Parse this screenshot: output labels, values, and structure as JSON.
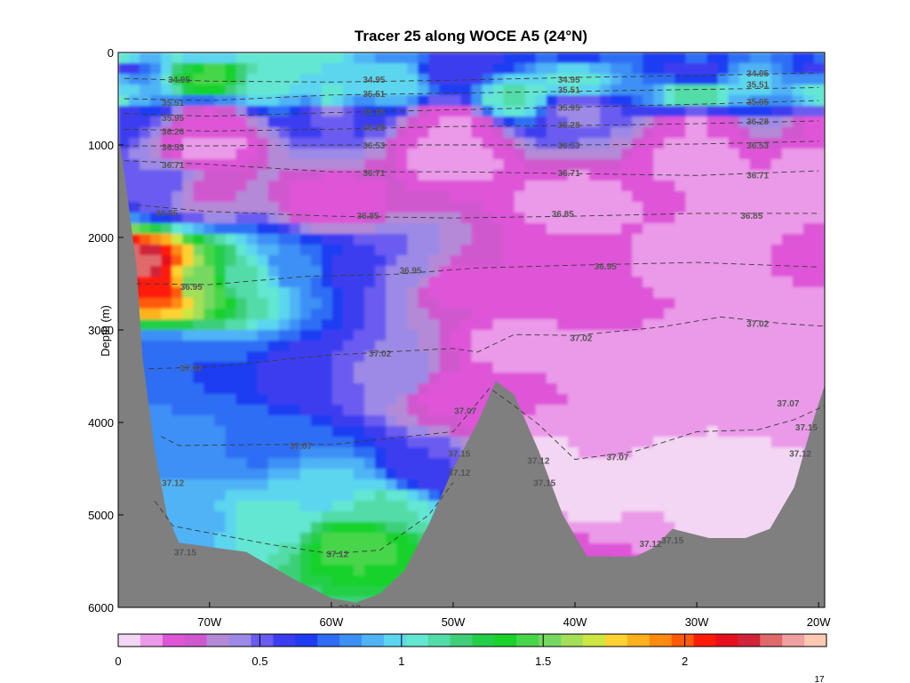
{
  "chart_data": {
    "type": "heatmap",
    "title": "Tracer 25 along WOCE A5 (24°N)",
    "ylabel": "Depth (m)",
    "xlabel": "",
    "x_unit": "degrees longitude (negative = W)",
    "xlim": [
      -77.5,
      -19.5
    ],
    "ylim": [
      0,
      6000
    ],
    "y_inverted": true,
    "x_ticks": [
      {
        "value": -70,
        "label": "70W"
      },
      {
        "value": -60,
        "label": "60W"
      },
      {
        "value": -50,
        "label": "50W"
      },
      {
        "value": -40,
        "label": "40W"
      },
      {
        "value": -30,
        "label": "30W"
      },
      {
        "value": -20,
        "label": "20W"
      }
    ],
    "y_ticks": [
      {
        "value": 0,
        "label": "0"
      },
      {
        "value": 1000,
        "label": "1000"
      },
      {
        "value": 2000,
        "label": "2000"
      },
      {
        "value": 3000,
        "label": "3000"
      },
      {
        "value": 4000,
        "label": "4000"
      },
      {
        "value": 5000,
        "label": "5000"
      },
      {
        "value": 6000,
        "label": "6000"
      }
    ],
    "colorbar": {
      "range": [
        0,
        2.5
      ],
      "ticks": [
        {
          "value": 0,
          "label": "0"
        },
        {
          "value": 0.5,
          "label": "0.5"
        },
        {
          "value": 1,
          "label": "1"
        },
        {
          "value": 1.5,
          "label": "1.5"
        },
        {
          "value": 2,
          "label": "2"
        }
      ],
      "colors": [
        "#f3d6f3",
        "#ea9ae8",
        "#de55d8",
        "#d058cf",
        "#b48ad6",
        "#9c8ae6",
        "#6a5cf0",
        "#3d3df0",
        "#1f3cf2",
        "#2f6ef4",
        "#3c90f5",
        "#4fb3f6",
        "#5bd6ef",
        "#63e6d2",
        "#52dca8",
        "#3ecf78",
        "#22cf46",
        "#18d22a",
        "#46d64a",
        "#76d860",
        "#a4df58",
        "#cde642",
        "#ffd233",
        "#ffb21e",
        "#ff8a12",
        "#ff5a08",
        "#ff1a0a",
        "#e8101e",
        "#d0243a",
        "#e06a6a",
        "#f0a0a0",
        "#ffc8b0"
      ]
    },
    "background_field": [
      [
        -77.5,
        0,
        1.05
      ],
      [
        -70,
        0,
        0.95
      ],
      [
        -62,
        0,
        1.05
      ],
      [
        -55,
        0,
        0.85
      ],
      [
        -47,
        0,
        0.62
      ],
      [
        -40,
        0,
        0.68
      ],
      [
        -30,
        0,
        0.72
      ],
      [
        -20,
        0,
        0.72
      ],
      [
        -77.5,
        300,
        0.9
      ],
      [
        -70,
        250,
        1.45
      ],
      [
        -65,
        320,
        1.05
      ],
      [
        -55,
        300,
        1.0
      ],
      [
        -40,
        300,
        1.05
      ],
      [
        -25,
        300,
        0.95
      ],
      [
        -20,
        300,
        0.85
      ],
      [
        -77.5,
        180,
        0.55
      ],
      [
        -50,
        180,
        0.55
      ],
      [
        -30,
        180,
        0.55
      ],
      [
        -20,
        180,
        0.55
      ],
      [
        -77.5,
        480,
        1.05
      ],
      [
        -60,
        480,
        1.05
      ],
      [
        -45,
        480,
        1.1
      ],
      [
        -30,
        470,
        1.15
      ],
      [
        -20,
        470,
        1.1
      ],
      [
        -77.5,
        620,
        0.55
      ],
      [
        -60,
        620,
        0.45
      ],
      [
        -40,
        620,
        0.45
      ],
      [
        -20,
        620,
        0.5
      ],
      [
        -70,
        780,
        0.18
      ],
      [
        -50,
        780,
        0.15
      ],
      [
        -30,
        780,
        0.15
      ],
      [
        -20,
        780,
        0.2
      ],
      [
        -70,
        1000,
        0.12
      ],
      [
        -50,
        1100,
        0.1
      ],
      [
        -30,
        1100,
        0.1
      ],
      [
        -20,
        1150,
        0.12
      ],
      [
        -74,
        1450,
        0.5
      ],
      [
        -70,
        1500,
        0.3
      ],
      [
        -60,
        1600,
        0.18
      ],
      [
        -76,
        2300,
        2.3
      ],
      [
        -74,
        2550,
        2.05
      ],
      [
        -71,
        2500,
        1.55
      ],
      [
        -67,
        2450,
        1.1
      ],
      [
        -63,
        2350,
        0.8
      ],
      [
        -58,
        2350,
        0.6
      ],
      [
        -54,
        2400,
        0.45
      ],
      [
        -50,
        2500,
        0.2
      ],
      [
        -74,
        3300,
        0.75
      ],
      [
        -70,
        3450,
        0.7
      ],
      [
        -62,
        3500,
        0.55
      ],
      [
        -55,
        3500,
        0.45
      ],
      [
        -50,
        3700,
        0.2
      ],
      [
        -72,
        4300,
        0.85
      ],
      [
        -66,
        4200,
        0.75
      ],
      [
        -60,
        4700,
        0.95
      ],
      [
        -56,
        4900,
        1.1
      ],
      [
        -58,
        5300,
        1.45
      ],
      [
        -65,
        5100,
        1.05
      ],
      [
        -72,
        5100,
        0.9
      ],
      [
        -52,
        4500,
        0.55
      ],
      [
        -44,
        4300,
        0.07
      ],
      [
        -40,
        4700,
        0.05
      ],
      [
        -30,
        4500,
        0.06
      ],
      [
        -25,
        4900,
        0.05
      ],
      [
        -35,
        3500,
        0.12
      ],
      [
        -25,
        3300,
        0.1
      ],
      [
        -45,
        3200,
        0.13
      ],
      [
        -40,
        2200,
        0.16
      ],
      [
        -30,
        2200,
        0.13
      ],
      [
        -20,
        2200,
        0.16
      ],
      [
        -40,
        1600,
        0.12
      ],
      [
        -25,
        1600,
        0.12
      ],
      [
        -20,
        3000,
        0.11
      ]
    ],
    "bathymetry": [
      [
        -77.5,
        900
      ],
      [
        -77,
        1300
      ],
      [
        -76,
        2300
      ],
      [
        -75.5,
        3300
      ],
      [
        -75,
        3800
      ],
      [
        -74.5,
        4300
      ],
      [
        -73.5,
        5000
      ],
      [
        -72.5,
        5300
      ],
      [
        -67,
        5400
      ],
      [
        -63,
        5700
      ],
      [
        -60,
        5900
      ],
      [
        -58,
        5950
      ],
      [
        -56,
        5850
      ],
      [
        -54,
        5600
      ],
      [
        -52,
        5100
      ],
      [
        -50,
        4500
      ],
      [
        -48,
        4000
      ],
      [
        -46.5,
        3550
      ],
      [
        -45,
        3700
      ],
      [
        -43,
        4300
      ],
      [
        -41,
        5000
      ],
      [
        -39,
        5450
      ],
      [
        -35,
        5450
      ],
      [
        -33.5,
        5350
      ],
      [
        -32,
        5150
      ],
      [
        -29,
        5250
      ],
      [
        -26,
        5250
      ],
      [
        -24,
        5150
      ],
      [
        -22,
        4700
      ],
      [
        -20.5,
        4000
      ],
      [
        -19.5,
        3600
      ]
    ],
    "contours": [
      {
        "label": "34.95",
        "line": [
          [
            -77,
            280
          ],
          [
            -70,
            310
          ],
          [
            -60,
            320
          ],
          [
            -50,
            300
          ],
          [
            -40,
            270
          ],
          [
            -30,
            250
          ],
          [
            -20,
            220
          ]
        ],
        "labels": [
          [
            -72.5,
            290
          ],
          [
            -56.5,
            290
          ],
          [
            -40.5,
            290
          ],
          [
            -25,
            220
          ]
        ]
      },
      {
        "label": "35.51",
        "line": [
          [
            -77,
            500
          ],
          [
            -70,
            520
          ],
          [
            -60,
            460
          ],
          [
            -50,
            440
          ],
          [
            -40,
            420
          ],
          [
            -30,
            400
          ],
          [
            -20,
            380
          ]
        ],
        "labels": [
          [
            -73,
            540
          ],
          [
            -56.5,
            440
          ],
          [
            -40.5,
            400
          ],
          [
            -25,
            340
          ]
        ]
      },
      {
        "label": "35.95",
        "line": [
          [
            -77,
            660
          ],
          [
            -70,
            690
          ],
          [
            -60,
            650
          ],
          [
            -50,
            620
          ],
          [
            -40,
            590
          ],
          [
            -30,
            560
          ],
          [
            -20,
            520
          ]
        ],
        "labels": [
          [
            -73,
            700
          ],
          [
            -56.5,
            640
          ],
          [
            -40.5,
            590
          ],
          [
            -25,
            530
          ]
        ]
      },
      {
        "label": "36.28",
        "line": [
          [
            -77,
            830
          ],
          [
            -70,
            850
          ],
          [
            -60,
            830
          ],
          [
            -50,
            800
          ],
          [
            -40,
            790
          ],
          [
            -30,
            770
          ],
          [
            -20,
            740
          ]
        ],
        "labels": [
          [
            -73,
            850
          ],
          [
            -56.5,
            810
          ],
          [
            -40.5,
            780
          ],
          [
            -25,
            740
          ]
        ]
      },
      {
        "label": "36.53",
        "line": [
          [
            -77,
            1010
          ],
          [
            -70,
            1010
          ],
          [
            -60,
            1000
          ],
          [
            -50,
            1000
          ],
          [
            -40,
            1000
          ],
          [
            -30,
            990
          ],
          [
            -20,
            960
          ]
        ],
        "labels": [
          [
            -73,
            1020
          ],
          [
            -56.5,
            1000
          ],
          [
            -40.5,
            1000
          ],
          [
            -25,
            1000
          ]
        ]
      },
      {
        "label": "36.71",
        "line": [
          [
            -77,
            1170
          ],
          [
            -70,
            1210
          ],
          [
            -60,
            1290
          ],
          [
            -50,
            1290
          ],
          [
            -40,
            1310
          ],
          [
            -30,
            1330
          ],
          [
            -20,
            1280
          ]
        ],
        "labels": [
          [
            -73,
            1210
          ],
          [
            -56.5,
            1300
          ],
          [
            -40.5,
            1300
          ],
          [
            -25,
            1320
          ]
        ]
      },
      {
        "label": "36.85",
        "line": [
          [
            -76,
            1650
          ],
          [
            -70,
            1720
          ],
          [
            -60,
            1770
          ],
          [
            -50,
            1790
          ],
          [
            -40,
            1770
          ],
          [
            -30,
            1740
          ],
          [
            -20,
            1740
          ]
        ],
        "labels": [
          [
            -73.5,
            1730
          ],
          [
            -57,
            1760
          ],
          [
            -41,
            1740
          ],
          [
            -25.5,
            1760
          ]
        ]
      },
      {
        "label": "36.95",
        "line": [
          [
            -76,
            2500
          ],
          [
            -70,
            2510
          ],
          [
            -62,
            2420
          ],
          [
            -55,
            2400
          ],
          [
            -48,
            2330
          ],
          [
            -40,
            2300
          ],
          [
            -30,
            2270
          ],
          [
            -20,
            2320
          ]
        ],
        "labels": [
          [
            -71.5,
            2530
          ],
          [
            -53.5,
            2350
          ],
          [
            -37.5,
            2310
          ]
        ]
      },
      {
        "label": "37.02",
        "line": [
          [
            -75,
            3420
          ],
          [
            -70,
            3400
          ],
          [
            -60,
            3270
          ],
          [
            -50,
            3200
          ],
          [
            -48,
            3240
          ],
          [
            -45,
            3050
          ],
          [
            -40,
            3060
          ],
          [
            -33,
            2970
          ],
          [
            -28,
            2860
          ],
          [
            -23,
            2930
          ],
          [
            -19.5,
            2960
          ]
        ],
        "labels": [
          [
            -71.5,
            3410
          ],
          [
            -56,
            3250
          ],
          [
            -39.5,
            3080
          ],
          [
            -25,
            2930
          ]
        ]
      },
      {
        "label": "37.07",
        "line": [
          [
            -74,
            4150
          ],
          [
            -72.5,
            4250
          ],
          [
            -66,
            4240
          ],
          [
            -60,
            4240
          ],
          [
            -55,
            4170
          ],
          [
            -50,
            4100
          ],
          [
            -47,
            3630
          ],
          [
            -45,
            3820
          ],
          [
            -43,
            4020
          ],
          [
            -40,
            4400
          ],
          [
            -35,
            4310
          ],
          [
            -30,
            4100
          ],
          [
            -25,
            4080
          ],
          [
            -22,
            3970
          ],
          [
            -19.5,
            3820
          ]
        ],
        "labels": [
          [
            -62.5,
            4250
          ],
          [
            -49,
            3870
          ],
          [
            -36.5,
            4370
          ],
          [
            -22.5,
            3790
          ]
        ]
      },
      {
        "label": "37.12",
        "line": [
          [
            -74.5,
            4850
          ],
          [
            -73,
            5120
          ],
          [
            -65,
            5320
          ],
          [
            -60,
            5420
          ],
          [
            -56,
            5380
          ],
          [
            -52,
            5000
          ],
          [
            -50,
            4650
          ]
        ],
        "labels": [
          [
            -59.5,
            5420
          ],
          [
            -49.5,
            4540
          ],
          [
            -43,
            4410
          ],
          [
            -33.8,
            5310
          ],
          [
            -21.5,
            4330
          ]
        ]
      }
    ],
    "extra_labels": [
      {
        "label": "37.15",
        "at": [
          [
            -72,
            5400
          ],
          [
            -49.5,
            4330
          ],
          [
            -42.5,
            4650
          ],
          [
            -32,
            5270
          ],
          [
            -21,
            4050
          ]
        ]
      },
      {
        "label": "37.19",
        "at": [
          [
            -58.5,
            6000
          ]
        ]
      },
      {
        "label": "37.12",
        "at": [
          [
            -73,
            4650
          ]
        ]
      }
    ],
    "footnote": "17"
  }
}
